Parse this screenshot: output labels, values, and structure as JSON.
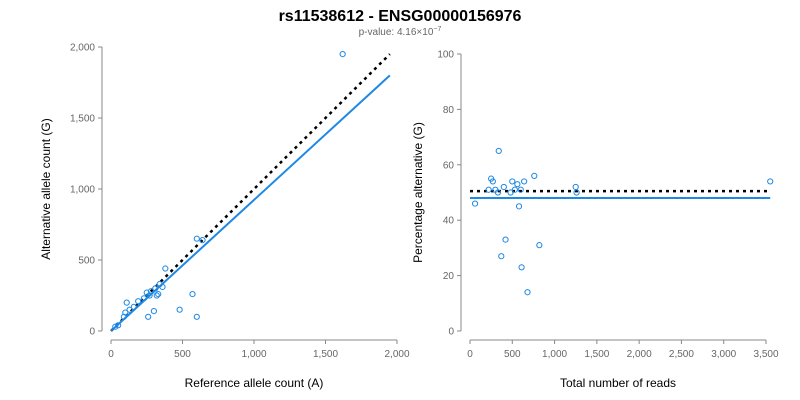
{
  "figure": {
    "title": "rs11538612 - ENSG00000156976",
    "pvalue_prefix": "p-value: 4.16×10",
    "pvalue_exponent": "−7"
  },
  "colors": {
    "points": "#1e88e5",
    "fit_line": "#1e88e5",
    "reference_line": "#000000",
    "axis": "#888888",
    "tick_text": "#666666"
  },
  "chart_data": [
    {
      "type": "scatter",
      "id": "left",
      "xlabel": "Reference allele count (A)",
      "ylabel": "Alternative allele count (G)",
      "xlim": [
        0,
        2000
      ],
      "ylim": [
        0,
        2000
      ],
      "xticks": [
        0,
        500,
        1000,
        1500,
        2000
      ],
      "xtick_labels": [
        "0",
        "500",
        "1,000",
        "1,500",
        "2,000"
      ],
      "yticks": [
        0,
        500,
        1000,
        1500,
        2000
      ],
      "ytick_labels": [
        "0",
        "500",
        "1,000",
        "1,500",
        "2,000"
      ],
      "points": [
        [
          30,
          30
        ],
        [
          50,
          40
        ],
        [
          90,
          100
        ],
        [
          100,
          130
        ],
        [
          110,
          200
        ],
        [
          130,
          150
        ],
        [
          160,
          170
        ],
        [
          190,
          210
        ],
        [
          230,
          230
        ],
        [
          250,
          270
        ],
        [
          260,
          100
        ],
        [
          270,
          250
        ],
        [
          280,
          280
        ],
        [
          300,
          140
        ],
        [
          310,
          300
        ],
        [
          320,
          250
        ],
        [
          330,
          260
        ],
        [
          340,
          330
        ],
        [
          360,
          310
        ],
        [
          380,
          440
        ],
        [
          480,
          150
        ],
        [
          570,
          260
        ],
        [
          600,
          100
        ],
        [
          600,
          650
        ],
        [
          640,
          640
        ],
        [
          1620,
          1950
        ]
      ],
      "fit_line": [
        [
          0,
          0
        ],
        [
          1950,
          1800
        ]
      ],
      "reference_line": [
        [
          0,
          0
        ],
        [
          1950,
          1950
        ]
      ]
    },
    {
      "type": "scatter",
      "id": "right",
      "xlabel": "Total number of reads",
      "ylabel": "Percentage alternative (G)",
      "xlim": [
        0,
        3500
      ],
      "ylim": [
        0,
        100
      ],
      "xticks": [
        0,
        500,
        1000,
        1500,
        2000,
        2500,
        3000,
        3500
      ],
      "xtick_labels": [
        "0",
        "500",
        "1,000",
        "1,500",
        "2,000",
        "2,500",
        "3,000",
        "3,500"
      ],
      "yticks": [
        0,
        20,
        40,
        60,
        80,
        100
      ],
      "ytick_labels": [
        "0",
        "20",
        "40",
        "60",
        "80",
        "100"
      ],
      "points": [
        [
          60,
          46
        ],
        [
          220,
          51
        ],
        [
          250,
          55
        ],
        [
          270,
          54
        ],
        [
          300,
          51
        ],
        [
          330,
          50
        ],
        [
          340,
          65
        ],
        [
          370,
          27
        ],
        [
          400,
          52
        ],
        [
          420,
          33
        ],
        [
          480,
          50
        ],
        [
          500,
          54
        ],
        [
          530,
          51
        ],
        [
          560,
          53
        ],
        [
          580,
          45
        ],
        [
          600,
          51
        ],
        [
          610,
          23
        ],
        [
          640,
          54
        ],
        [
          680,
          14
        ],
        [
          760,
          56
        ],
        [
          820,
          31
        ],
        [
          1250,
          52
        ],
        [
          1260,
          50
        ],
        [
          3550,
          54
        ]
      ],
      "fit_line": [
        [
          0,
          48
        ],
        [
          3550,
          48
        ]
      ],
      "reference_line": [
        [
          0,
          50.5
        ],
        [
          3550,
          50.5
        ]
      ]
    }
  ]
}
